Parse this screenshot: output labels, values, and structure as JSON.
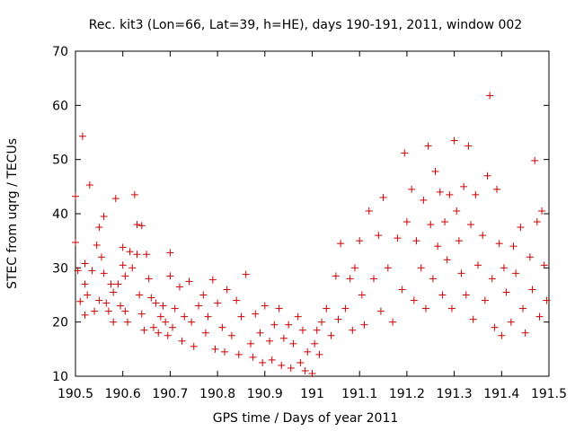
{
  "chart_data": {
    "type": "scatter",
    "title": "Rec. kit3 (Lon=66, Lat=39, h=HE), days 190-191, 2011, window 002",
    "xlabel": "GPS time / Days of year 2011",
    "ylabel": "STEC from uqrg / TECUs",
    "xlim": [
      190.5,
      191.5
    ],
    "ylim": [
      10,
      70
    ],
    "xticks": [
      190.5,
      190.6,
      190.7,
      190.8,
      190.9,
      191,
      191.1,
      191.2,
      191.3,
      191.4,
      191.5
    ],
    "xtick_labels": [
      "190.5",
      "190.6",
      "190.7",
      "190.8",
      "190.9",
      "191",
      "191.1",
      "191.2",
      "191.3",
      "191.4",
      "191.5"
    ],
    "yticks": [
      10,
      20,
      30,
      40,
      50,
      60,
      70
    ],
    "ytick_labels": [
      "10",
      "20",
      "30",
      "40",
      "50",
      "60",
      "70"
    ],
    "grid": false,
    "marker": "+",
    "color": "#cc0000",
    "series": [
      {
        "points": [
          [
            190.5,
            43.2
          ],
          [
            190.5,
            34.7
          ],
          [
            190.505,
            29.5
          ],
          [
            190.51,
            23.8
          ],
          [
            190.515,
            54.3
          ],
          [
            190.52,
            30.8
          ],
          [
            190.52,
            27.0
          ],
          [
            190.52,
            21.3
          ],
          [
            190.525,
            25.0
          ],
          [
            190.53,
            45.3
          ],
          [
            190.535,
            29.5
          ],
          [
            190.54,
            22.0
          ],
          [
            190.545,
            34.2
          ],
          [
            190.55,
            37.5
          ],
          [
            190.55,
            24.0
          ],
          [
            190.555,
            32.0
          ],
          [
            190.56,
            39.5
          ],
          [
            190.56,
            29.0
          ],
          [
            190.565,
            23.5
          ],
          [
            190.57,
            22.0
          ],
          [
            190.575,
            27.0
          ],
          [
            190.58,
            25.5
          ],
          [
            190.58,
            20.0
          ],
          [
            190.585,
            42.8
          ],
          [
            190.59,
            27.0
          ],
          [
            190.595,
            23.0
          ],
          [
            190.6,
            33.8
          ],
          [
            190.6,
            30.5
          ],
          [
            190.605,
            28.5
          ],
          [
            190.605,
            22.0
          ],
          [
            190.61,
            20.0
          ],
          [
            190.615,
            33.0
          ],
          [
            190.62,
            30.0
          ],
          [
            190.625,
            43.5
          ],
          [
            190.63,
            38.0
          ],
          [
            190.63,
            32.5
          ],
          [
            190.635,
            25.0
          ],
          [
            190.64,
            37.8
          ],
          [
            190.64,
            21.5
          ],
          [
            190.645,
            18.5
          ],
          [
            190.65,
            32.5
          ],
          [
            190.655,
            28.0
          ],
          [
            190.66,
            24.5
          ],
          [
            190.665,
            19.0
          ],
          [
            190.67,
            23.5
          ],
          [
            190.675,
            18.0
          ],
          [
            190.68,
            21.0
          ],
          [
            190.685,
            23.0
          ],
          [
            190.69,
            20.0
          ],
          [
            190.695,
            17.5
          ],
          [
            190.7,
            32.8
          ],
          [
            190.7,
            28.5
          ],
          [
            190.705,
            19.0
          ],
          [
            190.71,
            22.5
          ],
          [
            190.72,
            26.5
          ],
          [
            190.725,
            16.5
          ],
          [
            190.73,
            21.0
          ],
          [
            190.74,
            27.5
          ],
          [
            190.745,
            20.0
          ],
          [
            190.75,
            15.5
          ],
          [
            190.76,
            23.0
          ],
          [
            190.77,
            25.0
          ],
          [
            190.775,
            18.0
          ],
          [
            190.78,
            21.0
          ],
          [
            190.79,
            27.8
          ],
          [
            190.795,
            15.0
          ],
          [
            190.8,
            23.5
          ],
          [
            190.81,
            19.0
          ],
          [
            190.815,
            14.5
          ],
          [
            190.82,
            26.0
          ],
          [
            190.83,
            17.5
          ],
          [
            190.84,
            24.0
          ],
          [
            190.845,
            14.0
          ],
          [
            190.85,
            21.0
          ],
          [
            190.86,
            28.8
          ],
          [
            190.87,
            16.0
          ],
          [
            190.875,
            13.5
          ],
          [
            190.88,
            21.5
          ],
          [
            190.89,
            18.0
          ],
          [
            190.895,
            12.5
          ],
          [
            190.9,
            23.0
          ],
          [
            190.91,
            16.5
          ],
          [
            190.915,
            13.0
          ],
          [
            190.92,
            19.5
          ],
          [
            190.93,
            22.5
          ],
          [
            190.935,
            12.0
          ],
          [
            190.94,
            17.0
          ],
          [
            190.95,
            19.5
          ],
          [
            190.955,
            11.5
          ],
          [
            190.96,
            16.0
          ],
          [
            190.97,
            21.0
          ],
          [
            190.975,
            12.5
          ],
          [
            190.98,
            18.5
          ],
          [
            190.985,
            11.0
          ],
          [
            190.99,
            14.5
          ],
          [
            191.0,
            10.5
          ],
          [
            191.005,
            16.0
          ],
          [
            191.01,
            18.5
          ],
          [
            191.015,
            14.0
          ],
          [
            191.02,
            20.0
          ],
          [
            191.03,
            22.5
          ],
          [
            191.04,
            17.5
          ],
          [
            191.05,
            28.5
          ],
          [
            191.055,
            20.5
          ],
          [
            191.06,
            34.5
          ],
          [
            191.07,
            22.5
          ],
          [
            191.08,
            28.0
          ],
          [
            191.085,
            18.5
          ],
          [
            191.09,
            30.0
          ],
          [
            191.1,
            35.0
          ],
          [
            191.105,
            25.0
          ],
          [
            191.11,
            19.5
          ],
          [
            191.12,
            40.5
          ],
          [
            191.13,
            28.0
          ],
          [
            191.14,
            36.0
          ],
          [
            191.145,
            22.0
          ],
          [
            191.15,
            43.0
          ],
          [
            191.16,
            30.0
          ],
          [
            191.17,
            20.0
          ],
          [
            191.18,
            35.5
          ],
          [
            191.19,
            26.0
          ],
          [
            191.195,
            51.2
          ],
          [
            191.2,
            38.5
          ],
          [
            191.21,
            44.5
          ],
          [
            191.215,
            24.0
          ],
          [
            191.22,
            35.0
          ],
          [
            191.23,
            30.0
          ],
          [
            191.235,
            42.5
          ],
          [
            191.24,
            22.5
          ],
          [
            191.245,
            52.5
          ],
          [
            191.25,
            38.0
          ],
          [
            191.255,
            28.0
          ],
          [
            191.26,
            47.8
          ],
          [
            191.265,
            34.0
          ],
          [
            191.27,
            44.0
          ],
          [
            191.275,
            25.0
          ],
          [
            191.28,
            38.5
          ],
          [
            191.285,
            31.5
          ],
          [
            191.29,
            43.5
          ],
          [
            191.295,
            22.5
          ],
          [
            191.3,
            53.5
          ],
          [
            191.305,
            40.5
          ],
          [
            191.31,
            35.0
          ],
          [
            191.315,
            29.0
          ],
          [
            191.32,
            45.0
          ],
          [
            191.325,
            25.0
          ],
          [
            191.33,
            52.5
          ],
          [
            191.335,
            38.0
          ],
          [
            191.34,
            20.5
          ],
          [
            191.345,
            43.5
          ],
          [
            191.35,
            30.5
          ],
          [
            191.36,
            36.0
          ],
          [
            191.365,
            24.0
          ],
          [
            191.37,
            47.0
          ],
          [
            191.375,
            61.8
          ],
          [
            191.38,
            28.0
          ],
          [
            191.385,
            19.0
          ],
          [
            191.39,
            44.5
          ],
          [
            191.395,
            34.5
          ],
          [
            191.4,
            17.5
          ],
          [
            191.405,
            30.0
          ],
          [
            191.41,
            25.5
          ],
          [
            191.42,
            20.0
          ],
          [
            191.425,
            34.0
          ],
          [
            191.43,
            29.0
          ],
          [
            191.44,
            37.5
          ],
          [
            191.445,
            22.5
          ],
          [
            191.45,
            18.0
          ],
          [
            191.46,
            32.0
          ],
          [
            191.465,
            26.0
          ],
          [
            191.47,
            49.8
          ],
          [
            191.475,
            38.5
          ],
          [
            191.48,
            21.0
          ],
          [
            191.485,
            40.5
          ],
          [
            191.49,
            30.5
          ],
          [
            191.495,
            24.0
          ]
        ]
      }
    ]
  }
}
